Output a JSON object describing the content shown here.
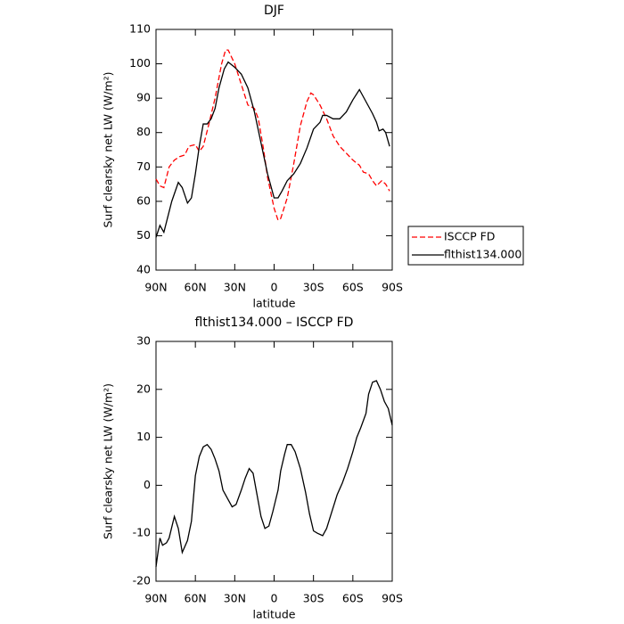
{
  "chart_data": [
    {
      "type": "line",
      "title": "DJF",
      "xlabel": "latitude",
      "ylabel": "Surf clearsky net LW (W/m²)",
      "xlim": [
        90,
        -90
      ],
      "ylim": [
        40,
        110
      ],
      "xticks": [
        {
          "value": 90,
          "label": "90N"
        },
        {
          "value": 60,
          "label": "60N"
        },
        {
          "value": 30,
          "label": "30N"
        },
        0,
        {
          "value": -30,
          "label": "30S"
        },
        {
          "value": -60,
          "label": "60S"
        },
        {
          "value": -90,
          "label": "90S"
        }
      ],
      "yticks": [
        40,
        50,
        60,
        70,
        80,
        90,
        100,
        110
      ],
      "legend": "outside-right",
      "series": [
        {
          "name": "ISCCP FD",
          "color": "#ff0000",
          "dash": true,
          "x": [
            90,
            87,
            84,
            80,
            76,
            72,
            68,
            65,
            60,
            57,
            54,
            50,
            45,
            40,
            37,
            35,
            30,
            25,
            20,
            15,
            12,
            8,
            5,
            0,
            -3,
            -5,
            -10,
            -15,
            -20,
            -25,
            -28,
            -30,
            -35,
            -40,
            -45,
            -50,
            -55,
            -60,
            -65,
            -68,
            -72,
            -75,
            -78,
            -82,
            -85,
            -88
          ],
          "values": [
            66.5,
            64.5,
            64,
            70,
            72,
            73,
            73.5,
            76,
            76.5,
            74.5,
            76,
            82,
            90,
            100,
            104,
            104,
            100,
            94,
            88,
            87,
            84,
            75,
            67,
            58,
            54.5,
            55,
            61,
            71,
            82,
            89,
            91.5,
            91,
            88,
            84,
            79,
            76,
            74,
            72,
            70.5,
            68.5,
            68,
            66,
            64.5,
            66,
            65,
            63
          ]
        },
        {
          "name": "flthist134.000",
          "color": "#000000",
          "dash": false,
          "x": [
            90,
            87,
            84,
            78,
            73,
            70,
            66,
            63,
            60,
            57,
            54,
            51,
            48,
            45,
            42,
            38,
            35,
            30,
            25,
            20,
            15,
            10,
            5,
            0,
            -3,
            -6,
            -10,
            -15,
            -20,
            -25,
            -30,
            -35,
            -37,
            -40,
            -45,
            -50,
            -55,
            -60,
            -65,
            -70,
            -75,
            -78,
            -80,
            -83,
            -85,
            -88
          ],
          "values": [
            49.5,
            53,
            51,
            60,
            65.5,
            64,
            59.5,
            61,
            68,
            76,
            82.5,
            82.5,
            84,
            87,
            93,
            98.5,
            100.5,
            99,
            97,
            93,
            86,
            77,
            68,
            61,
            61,
            63,
            66,
            68,
            71,
            75.5,
            81,
            83,
            85,
            85,
            84,
            84,
            86,
            89.5,
            92.5,
            89,
            85.5,
            83,
            80.5,
            81,
            80,
            76
          ]
        }
      ]
    },
    {
      "type": "line",
      "title": "flthist134.000 – ISCCP FD",
      "xlabel": "latitude",
      "ylabel": "Surf clearsky net LW (W/m²)",
      "xlim": [
        90,
        -90
      ],
      "ylim": [
        -20,
        30
      ],
      "xticks": [
        {
          "value": 90,
          "label": "90N"
        },
        {
          "value": 60,
          "label": "60N"
        },
        {
          "value": 30,
          "label": "30N"
        },
        0,
        {
          "value": -30,
          "label": "30S"
        },
        {
          "value": -60,
          "label": "60S"
        },
        {
          "value": -90,
          "label": "90S"
        }
      ],
      "yticks": [
        -20,
        -10,
        0,
        10,
        20,
        30
      ],
      "series": [
        {
          "color": "#000000",
          "dash": false,
          "x": [
            90,
            87,
            85,
            82,
            80,
            76,
            73,
            70,
            66,
            63,
            60,
            57,
            54,
            51,
            48,
            45,
            42,
            39,
            35,
            32,
            29,
            25,
            22,
            19,
            16,
            13,
            10,
            7,
            4,
            1,
            -3,
            -5,
            -8,
            -10,
            -13,
            -16,
            -20,
            -24,
            -27,
            -30,
            -33,
            -37,
            -40,
            -44,
            -48,
            -52,
            -56,
            -60,
            -63,
            -66,
            -70,
            -72,
            -75,
            -78,
            -81,
            -84,
            -87,
            -90
          ],
          "values": [
            -17,
            -11,
            -12.5,
            -12,
            -11,
            -6.5,
            -9,
            -14,
            -11.5,
            -7.5,
            2,
            6,
            8,
            8.5,
            7.5,
            5.5,
            3,
            -1,
            -3,
            -4.5,
            -4,
            -1,
            1.5,
            3.5,
            2.5,
            -2,
            -6.5,
            -9,
            -8.5,
            -5.5,
            -1,
            3,
            6.5,
            8.5,
            8.5,
            7,
            3.5,
            -1.5,
            -6,
            -9.5,
            -10,
            -10.5,
            -9,
            -5.5,
            -2,
            0.5,
            3.5,
            7,
            10,
            12,
            15,
            19,
            21.5,
            21.8,
            20,
            17.5,
            16,
            12.5
          ]
        }
      ]
    }
  ]
}
